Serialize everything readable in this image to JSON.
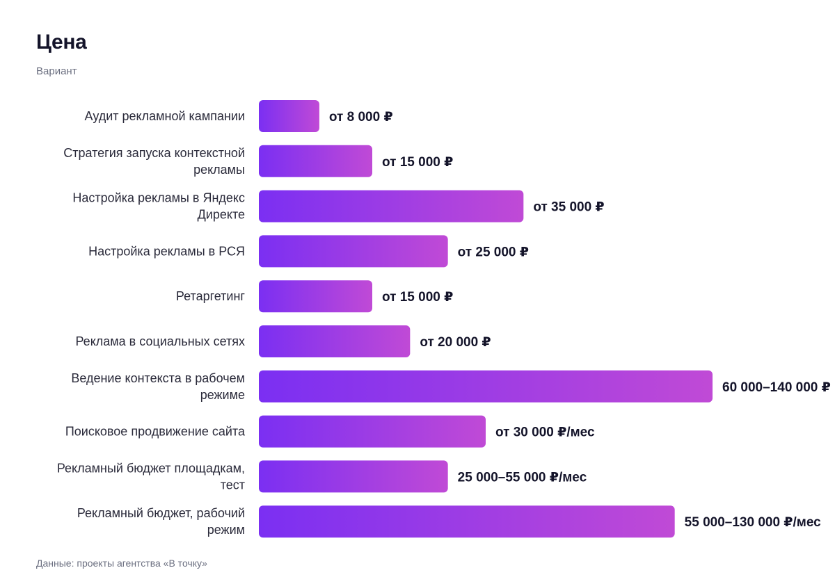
{
  "chart_data": {
    "type": "bar",
    "orientation": "horizontal",
    "title": "Цена",
    "subtitle": "Вариант",
    "source": "Данные: проекты агентства «В точку»",
    "gradient_colors": [
      "#7b2ff2",
      "#c04ad6"
    ],
    "categories": [
      "Аудит рекламной кампании",
      "Стратегия запуска контекстной рекламы",
      "Настройка рекламы в Яндекс Директе",
      "Настройка рекламы в РСЯ",
      "Ретаргетинг",
      "Реклама в социальных сетях",
      "Ведение контекста в рабочем режиме",
      "Поисковое продвижение сайта",
      "Рекламный бюджет площадкам, тест",
      "Рекламный бюджет, рабочий режим"
    ],
    "label_lines": [
      [
        "Аудит рекламной кампании"
      ],
      [
        "Стратегия запуска контекстной",
        "рекламы"
      ],
      [
        "Настройка рекламы в Яндекс",
        "Директе"
      ],
      [
        "Настройка рекламы в РСЯ"
      ],
      [
        "Ретаргетинг"
      ],
      [
        "Реклама в социальных сетях"
      ],
      [
        "Ведение контекста в рабочем",
        "режиме"
      ],
      [
        "Поисковое продвижение сайта"
      ],
      [
        "Рекламный бюджет площадкам,",
        "тест"
      ],
      [
        "Рекламный бюджет, рабочий",
        "режим"
      ]
    ],
    "values": [
      8000,
      15000,
      35000,
      25000,
      15000,
      20000,
      60000,
      30000,
      25000,
      55000
    ],
    "value_labels": [
      "от 8 000 ₽",
      "от 15 000 ₽",
      "от 35 000 ₽",
      "от 25 000 ₽",
      "от 15 000 ₽",
      "от 20 000 ₽",
      "60 000–140 000 ₽",
      "от 30 000 ₽/мес",
      "25 000–55 000 ₽/мес",
      "55 000–130 000 ₽/мес"
    ],
    "xlim": [
      0,
      60000
    ],
    "grid": false,
    "legend": "none"
  }
}
